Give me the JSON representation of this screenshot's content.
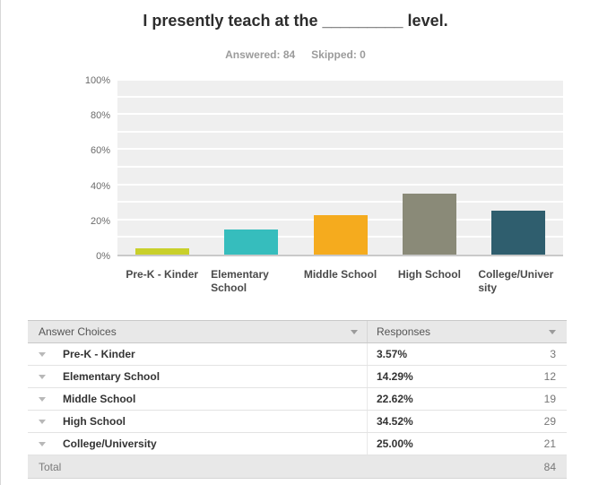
{
  "page": {
    "title": "I presently teach at the _________ level.",
    "answered_label": "Answered: 84",
    "skipped_label": "Skipped: 0"
  },
  "chart_data": {
    "type": "bar",
    "title": "I presently teach at the _________ level.",
    "answered": 84,
    "skipped": 0,
    "categories": [
      "Pre-K - Kinder",
      "Elementary School",
      "Middle School",
      "High School",
      "College/University"
    ],
    "values": [
      3.57,
      14.29,
      22.62,
      34.52,
      25.0
    ],
    "bar_colors": [
      "#c9d02b",
      "#36bdbd",
      "#f5ab1e",
      "#8a8a78",
      "#2f5e6e"
    ],
    "ylabel": "",
    "xlabel": "",
    "ylim": [
      0,
      100
    ],
    "yticks": [
      0,
      20,
      40,
      60,
      80,
      100
    ],
    "ytick_suffix": "%",
    "grid": true,
    "plot_background": "#efefef",
    "gridline_color": "#ffffff",
    "legend": "none"
  },
  "table": {
    "columns": [
      "Answer Choices",
      "Responses"
    ],
    "rows": [
      {
        "label": "Pre-K - Kinder",
        "percent": "3.57%",
        "count": "3"
      },
      {
        "label": "Elementary School",
        "percent": "14.29%",
        "count": "12"
      },
      {
        "label": "Middle School",
        "percent": "22.62%",
        "count": "19"
      },
      {
        "label": "High School",
        "percent": "34.52%",
        "count": "29"
      },
      {
        "label": "College/University",
        "percent": "25.00%",
        "count": "21"
      }
    ],
    "total_label": "Total",
    "total_value": "84"
  }
}
